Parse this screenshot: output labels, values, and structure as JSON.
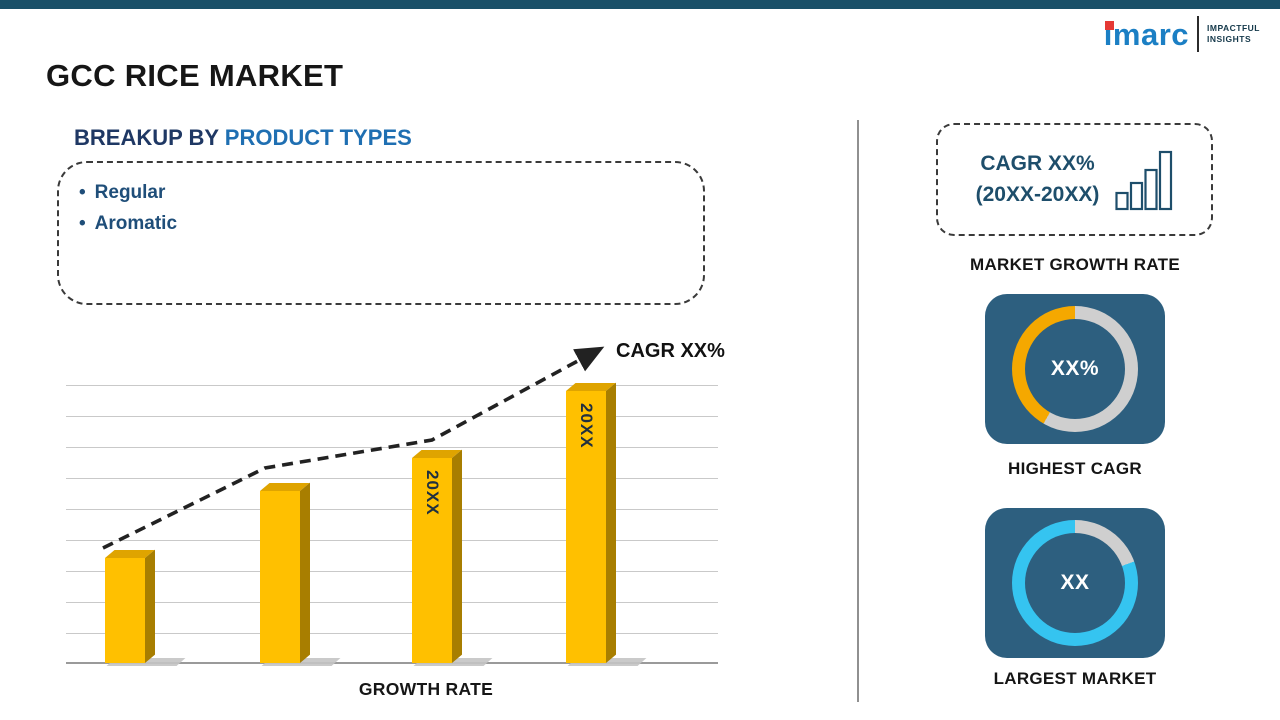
{
  "colors": {
    "top_bar": "#1A5068",
    "accent_gold": "#FFC000",
    "accent_gold_side": "#A87E00",
    "accent_gold_top": "#DFA400",
    "card_bg": "#2D5F7F",
    "donut_gray": "#CFCFCF",
    "heading_navy": "#1F3864",
    "heading_blue": "#1F6FB2",
    "bullet_navy": "#1F4E79",
    "box_text_navy": "#1E4E6B",
    "logo_blue": "#1B7FC4",
    "logo_red": "#E53935",
    "bar_label": "#203040",
    "divider_gray": "#909090",
    "gridline_gray": "#C9C9C9",
    "shadow_gray": "#C4C4C4",
    "arrow_dark": "#222222"
  },
  "header": {
    "title": "GCC RICE MARKET",
    "logo": {
      "text": "imarc",
      "tagline_line1": "IMPACTFUL",
      "tagline_line2": "INSIGHTS"
    }
  },
  "breakup": {
    "heading_prefix": "BREAKUP BY ",
    "heading_highlight": "PRODUCT TYPES",
    "items": [
      "Regular",
      "Aromatic"
    ]
  },
  "chart_data": {
    "type": "bar",
    "title": "",
    "xlabel": "GROWTH RATE",
    "ylabel": "",
    "categories": [
      "",
      "",
      "20XX",
      "20XX"
    ],
    "values": [
      105,
      172,
      205,
      272
    ],
    "values_unit": "relative bar height (placeholder infographic, no numeric axis shown)",
    "bar_color": "#FFC000",
    "annotation": "CAGR XX%",
    "trendline": "dashed rising arrow across bar tops",
    "gridlines": true,
    "legend": false
  },
  "sidebar": {
    "cagr_box": {
      "line1": "CAGR XX%",
      "line2": "(20XX-20XX)"
    },
    "market_growth_label": "MARKET GROWTH RATE",
    "highest_cagr": {
      "value": "XX%",
      "label": "HIGHEST CAGR",
      "arc_color": "#F5A800",
      "arc_from_deg": 210,
      "arc_to_deg": 360
    },
    "largest_market": {
      "value": "XX",
      "label": "LARGEST MARKET",
      "arc_color": "#35C4F0",
      "arc_from_deg": 70,
      "arc_to_deg": 360
    }
  }
}
